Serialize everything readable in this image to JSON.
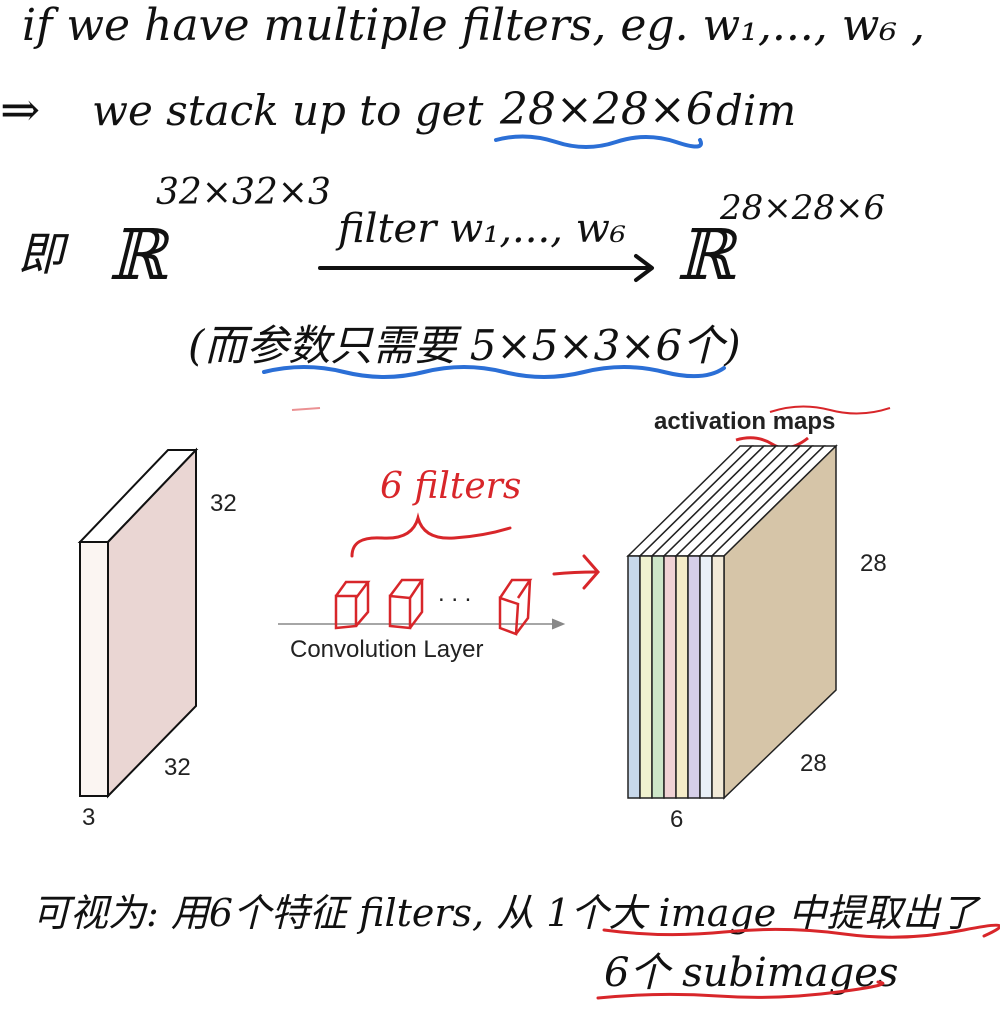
{
  "notes": {
    "line1": "if we have multiple filters, eg. w₁,..., w₆ ,",
    "line2_implies": "⇒",
    "line2_text": "we stack up to get",
    "line2_dims": "28×28×6",
    "line2_tail": "dim",
    "line3_prefix": "即",
    "line3_R_left": "ℝ",
    "line3_sup_left": "32×32×3",
    "line3_arrow_label": "filter w₁,..., w₆",
    "line3_R_right": "ℝ",
    "line3_sup_right": "28×28×6",
    "line4": "(而参数只需要 5×5×3×6个)",
    "bottom_line1": "可视为: 用6个特征 filters, 从 1个大 image 中提取出了",
    "bottom_line2": "6个 subimages"
  },
  "figure": {
    "activation_title": "activation maps",
    "input_height": "32",
    "input_width": "32",
    "input_depth": "3",
    "output_height": "28",
    "output_width": "28",
    "output_depth": "6",
    "layer_label": "Convolution Layer",
    "filters_annotation": "6 filters",
    "filter_dots": ". . .",
    "slice_colors": [
      "#c8d8ea",
      "#f0f2cf",
      "#cde6c8",
      "#f0d2d4",
      "#f5ecc8",
      "#d6cfe8",
      "#e9f0f7",
      "#d6c5a8"
    ],
    "input_front_color": "#fbf5f2",
    "input_side_color": "#ead6d3"
  },
  "colors": {
    "blue_underline": "#2b6fd6",
    "red_ink": "#d8262a"
  }
}
